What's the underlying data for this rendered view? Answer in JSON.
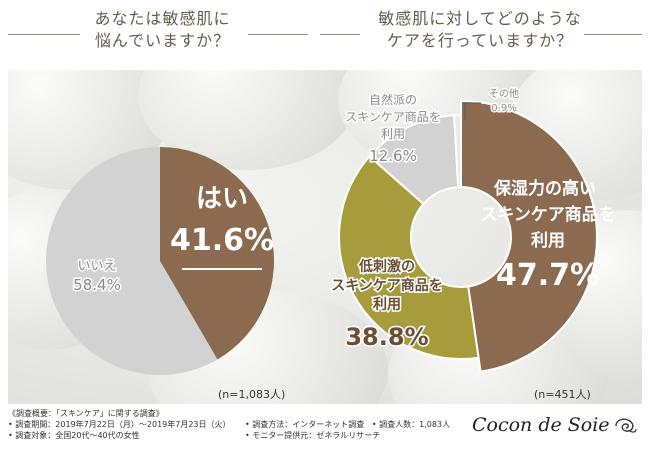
{
  "questions": {
    "left_line1": "あなたは敏感肌に",
    "left_line2": "悩んでいますか？",
    "right_line1": "敏感肌に対してどのような",
    "right_line2": "ケアを行っていますか？"
  },
  "chart_data": [
    {
      "type": "pie",
      "categories": [
        "はい",
        "いいえ"
      ],
      "values": [
        41.6,
        58.4
      ],
      "colors": [
        "#8b6a4f",
        "#d2d2d2"
      ],
      "labels": [
        {
          "lines": [
            "はい"
          ],
          "value": "41.6%"
        },
        {
          "lines": [
            "いいえ"
          ],
          "value": "58.4%"
        }
      ],
      "n_label": "(n=1,083人)"
    },
    {
      "type": "pie",
      "style": "donut",
      "categories": [
        "保湿力の高いスキンケア商品を利用",
        "低刺激のスキンケア商品を利用",
        "自然派のスキンケア商品を利用",
        "その他"
      ],
      "values": [
        47.7,
        38.8,
        12.6,
        0.9
      ],
      "colors": [
        "#8b6a4f",
        "#a79c3c",
        "#d2d2d2",
        "#e9e9e9"
      ],
      "labels": [
        {
          "lines": [
            "保湿力の高い",
            "スキンケア商品を",
            "利用"
          ],
          "value": "47.7%"
        },
        {
          "lines": [
            "低刺激の",
            "スキンケア商品を",
            "利用"
          ],
          "value": "38.8%"
        },
        {
          "lines": [
            "自然派の",
            "スキンケア商品を",
            "利用"
          ],
          "value": "12.6%"
        },
        {
          "lines": [
            "その他"
          ],
          "value": "0.9%"
        }
      ],
      "n_label": "(n=451人)"
    }
  ],
  "footer": {
    "title": "《調査概要：「スキンケア」に関する調査》",
    "period": "• 調査期間：2019年7月22日（月）〜2019年7月23日（火）",
    "target": "• 調査対象：全国20代〜40代の女性",
    "method": "• 調査方法：インターネット調査",
    "provider": "• モニター提供元：ゼネラルリサーチ",
    "count": "• 調査人数：1,083人"
  },
  "brand": "Cocon de Soie"
}
